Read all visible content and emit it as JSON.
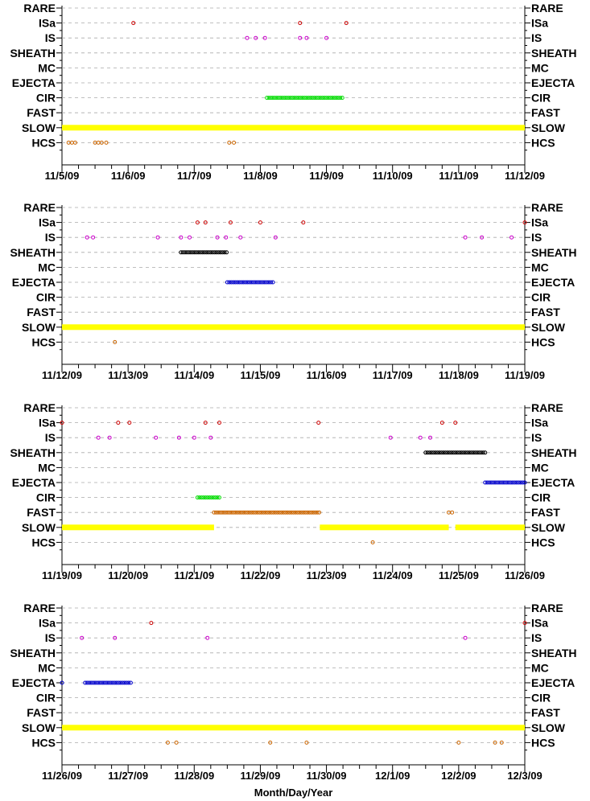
{
  "chart_data": {
    "type": "scatter",
    "xlabel": "Month/Day/Year",
    "categories": [
      "RARE",
      "ISa",
      "IS",
      "SHEATH",
      "MC",
      "EJECTA",
      "CIR",
      "FAST",
      "SLOW",
      "HCS"
    ],
    "colors": {
      "ISa": "#cc0000",
      "IS": "#cc00cc",
      "SHEATH": "#000000",
      "EJECTA": "#0000cc",
      "CIR": "#00dd00",
      "FAST": "#cc6600",
      "SLOW": "#ffff00",
      "HCS": "#cc6600"
    },
    "panels": [
      {
        "xlim": [
          0,
          7
        ],
        "ticks": [
          "11/5/09",
          "11/6/09",
          "11/7/09",
          "11/8/09",
          "11/9/09",
          "11/10/09",
          "11/11/09",
          "11/12/09"
        ],
        "points": [
          {
            "cat": "ISa",
            "x": [
              1.08,
              3.6,
              4.3
            ]
          },
          {
            "cat": "IS",
            "x": [
              2.8,
              2.93,
              3.07,
              3.6,
              3.7,
              4.0
            ]
          },
          {
            "cat": "CIR",
            "range": [
              3.1,
              4.25
            ]
          },
          {
            "cat": "SLOW",
            "range": [
              0,
              7
            ]
          },
          {
            "cat": "HCS",
            "x": [
              0.1,
              0.15,
              0.2,
              0.5,
              0.55,
              0.6,
              0.67,
              2.53,
              2.6
            ]
          }
        ]
      },
      {
        "xlim": [
          0,
          7
        ],
        "ticks": [
          "11/12/09",
          "11/13/09",
          "11/14/09",
          "11/15/09",
          "11/16/09",
          "11/17/09",
          "11/18/09",
          "11/19/09"
        ],
        "points": [
          {
            "cat": "ISa",
            "x": [
              2.05,
              2.17,
              2.55,
              3.0,
              3.65,
              7.0
            ]
          },
          {
            "cat": "IS",
            "x": [
              0.38,
              0.47,
              1.45,
              1.8,
              1.93,
              2.35,
              2.48,
              2.7,
              3.23,
              6.1,
              6.35,
              6.8
            ]
          },
          {
            "cat": "SHEATH",
            "range": [
              1.8,
              2.5
            ]
          },
          {
            "cat": "EJECTA",
            "range": [
              2.5,
              3.2
            ]
          },
          {
            "cat": "SLOW",
            "range": [
              0,
              7
            ]
          },
          {
            "cat": "HCS",
            "x": [
              0.8
            ]
          }
        ]
      },
      {
        "xlim": [
          0,
          7
        ],
        "ticks": [
          "11/19/09",
          "11/20/09",
          "11/21/09",
          "11/22/09",
          "11/23/09",
          "11/24/09",
          "11/25/09",
          "11/26/09"
        ],
        "points": [
          {
            "cat": "ISa",
            "x": [
              0.0,
              0.85,
              1.02,
              2.17,
              2.38,
              3.88,
              5.75,
              5.95
            ]
          },
          {
            "cat": "IS",
            "x": [
              0.55,
              0.72,
              1.42,
              1.77,
              2.0,
              2.25,
              4.97,
              5.42,
              5.57
            ]
          },
          {
            "cat": "SHEATH",
            "range": [
              5.5,
              6.4
            ]
          },
          {
            "cat": "EJECTA",
            "range": [
              6.4,
              7.0
            ]
          },
          {
            "cat": "CIR",
            "range": [
              2.05,
              2.4
            ]
          },
          {
            "cat": "FAST",
            "range": [
              2.3,
              3.9
            ]
          },
          {
            "cat": "FAST",
            "x": [
              5.85,
              5.9
            ]
          },
          {
            "cat": "SLOW",
            "range": [
              0,
              2.3
            ]
          },
          {
            "cat": "SLOW",
            "range": [
              3.9,
              5.85
            ]
          },
          {
            "cat": "SLOW",
            "range": [
              5.95,
              7.0
            ]
          },
          {
            "cat": "HCS",
            "x": [
              4.7
            ]
          }
        ]
      },
      {
        "xlim": [
          0,
          7
        ],
        "ticks": [
          "11/26/09",
          "11/27/09",
          "11/28/09",
          "11/29/09",
          "11/30/09",
          "12/1/09",
          "12/2/09",
          "12/3/09"
        ],
        "points": [
          {
            "cat": "ISa",
            "x": [
              1.35,
              7.0
            ]
          },
          {
            "cat": "IS",
            "x": [
              0.3,
              0.8,
              2.2,
              6.1
            ]
          },
          {
            "cat": "EJECTA",
            "range": [
              0.35,
              1.05
            ]
          },
          {
            "cat": "EJECTA",
            "x": [
              0.0
            ]
          },
          {
            "cat": "SLOW",
            "range": [
              0,
              7
            ]
          },
          {
            "cat": "HCS",
            "x": [
              1.6,
              1.73,
              3.15,
              3.7,
              6.0,
              6.55,
              6.65
            ]
          }
        ]
      }
    ]
  }
}
